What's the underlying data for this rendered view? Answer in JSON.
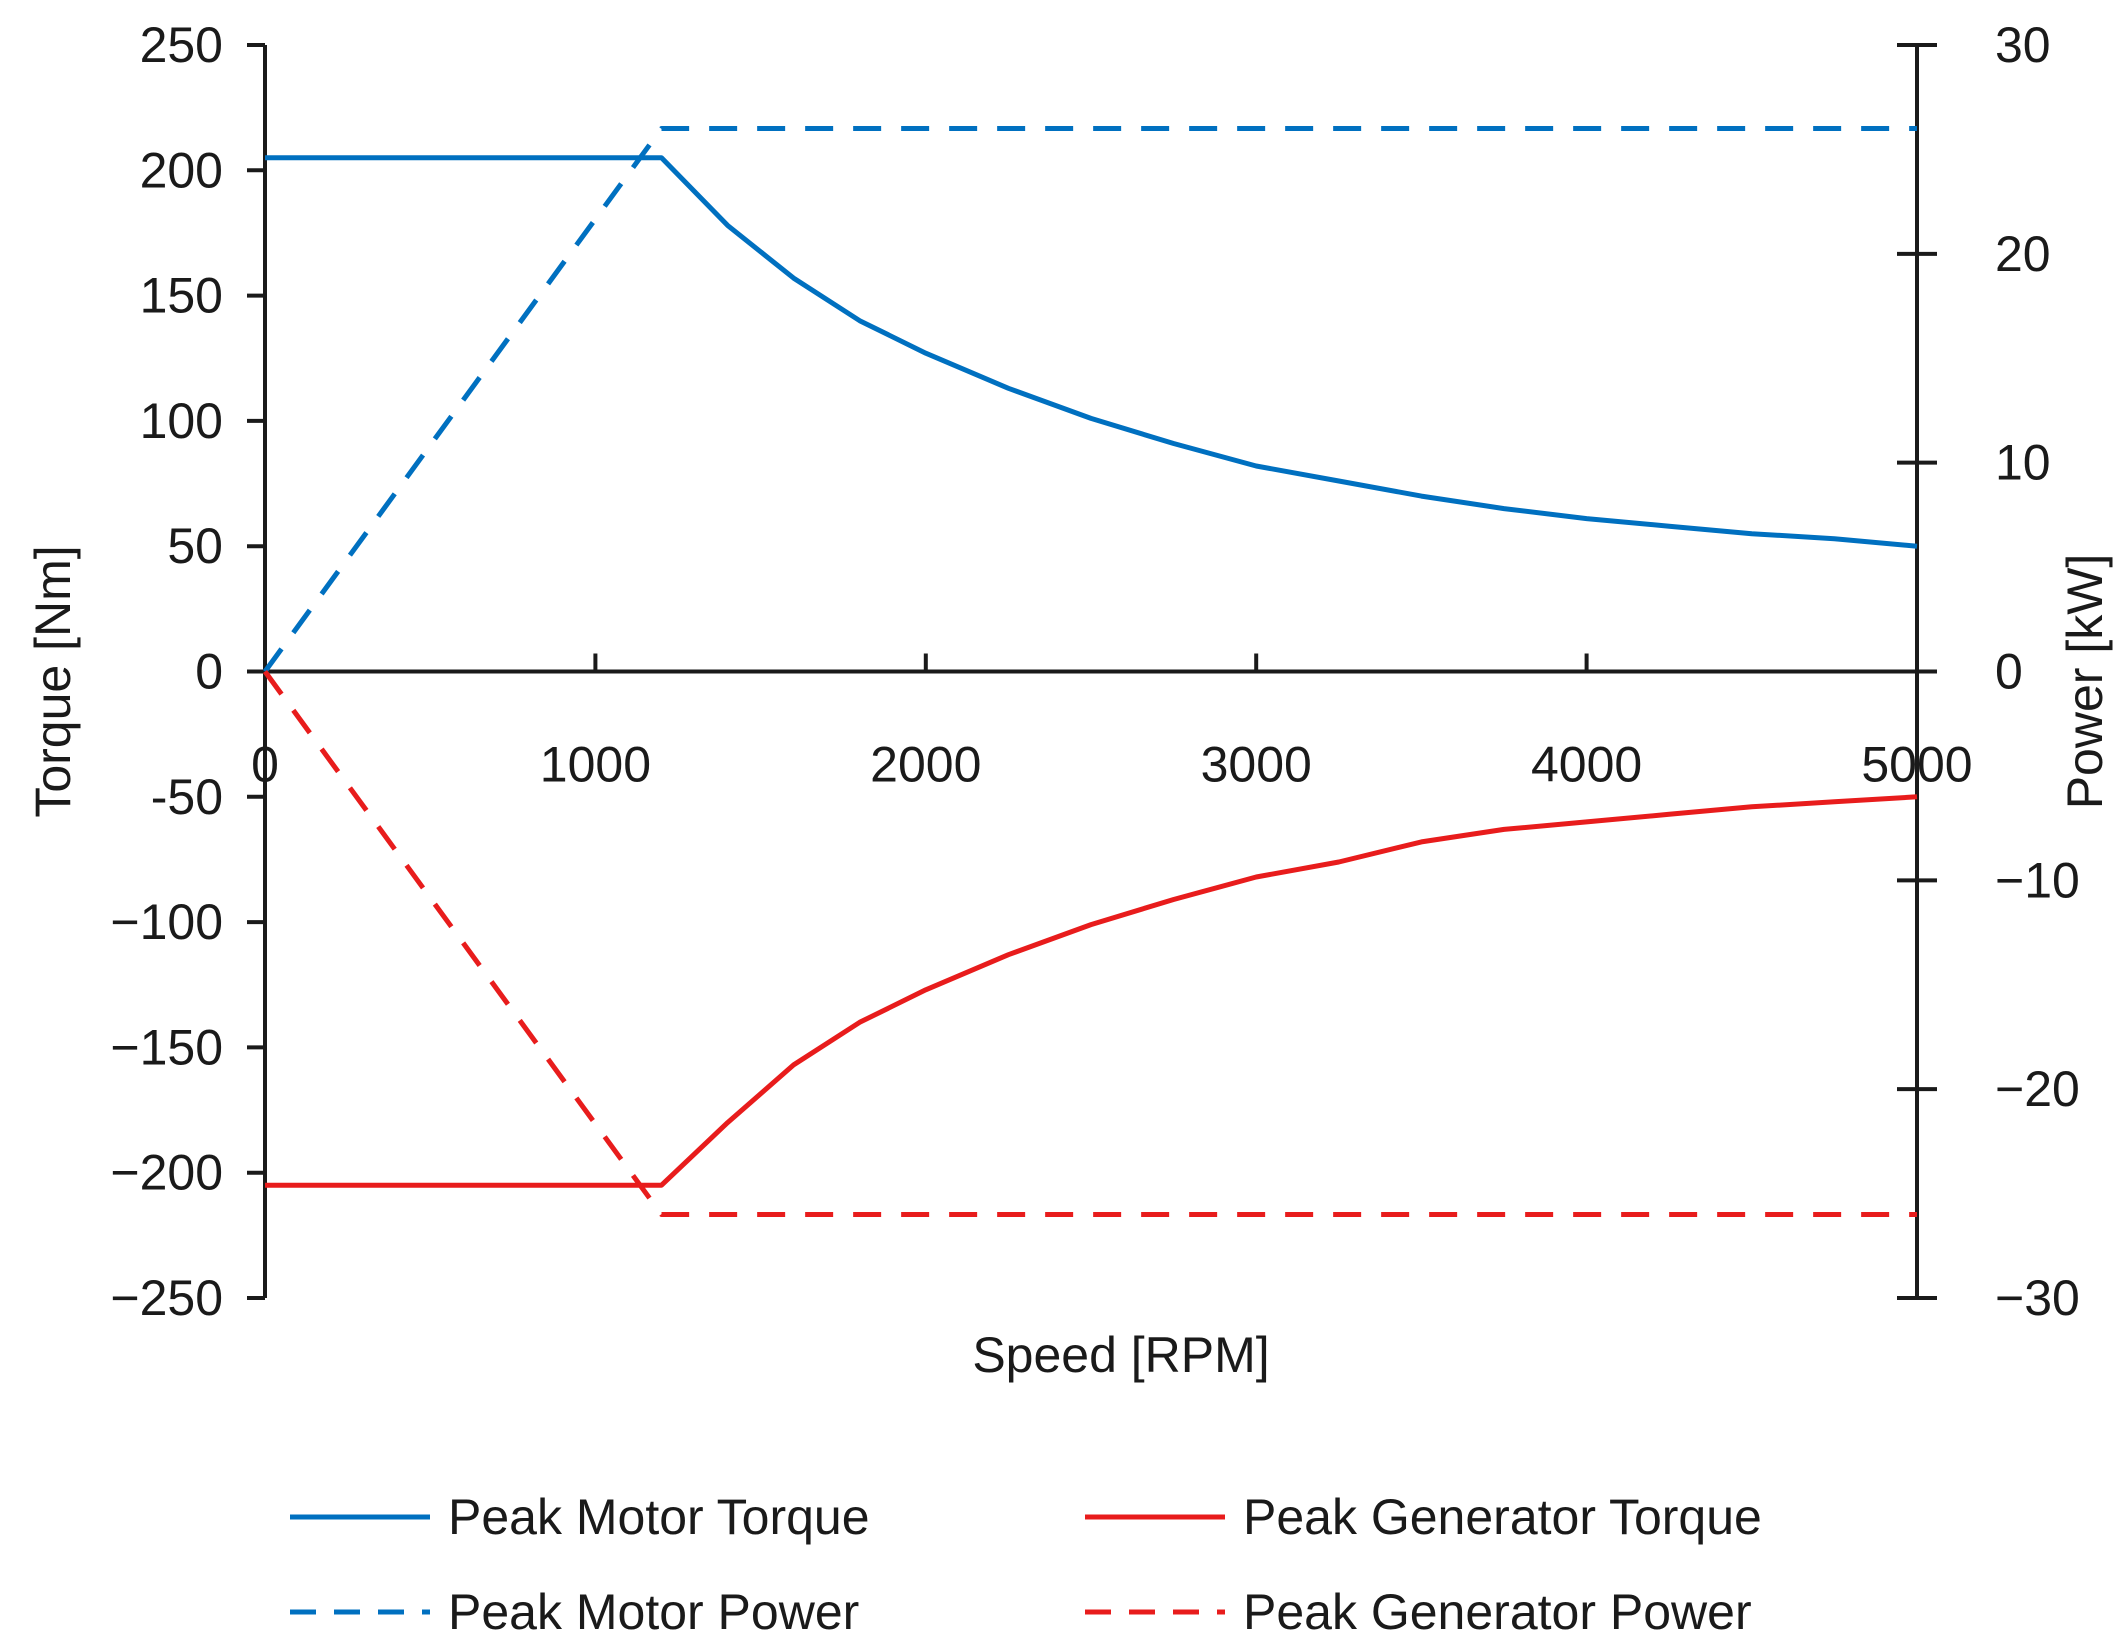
{
  "chart_data": {
    "type": "line",
    "title": "",
    "xlabel": "Speed [RPM]",
    "ylabel": "Torque [Nm]",
    "y2label": "Power [kW]",
    "xlim": [
      0,
      5000
    ],
    "ylim": [
      -250,
      250
    ],
    "y2lim": [
      -30,
      30
    ],
    "xticks": [
      0,
      1000,
      2000,
      3000,
      4000,
      5000
    ],
    "xtick_labels": [
      "0",
      "1000",
      "2000",
      "3000",
      "4000",
      "5000"
    ],
    "yticks": [
      250,
      200,
      150,
      100,
      50,
      0,
      -50,
      -100,
      -150,
      -200,
      -250
    ],
    "ytick_labels": [
      "250",
      "200",
      "150",
      "100",
      "50",
      "0",
      "-50",
      "−100",
      "−150",
      "−200",
      "−250"
    ],
    "y2ticks": [
      30,
      20,
      10,
      0,
      -10,
      -20,
      -30
    ],
    "y2tick_labels": [
      "30",
      "20",
      "10",
      "0",
      "−10",
      "−20",
      "−30"
    ],
    "grid": false,
    "legend_position": "bottom",
    "series": [
      {
        "name": "Peak Motor Torque",
        "axis": "left",
        "color": "#0070C0",
        "dash": "solid",
        "x": [
          0,
          1200,
          1400,
          1600,
          1800,
          2000,
          2250,
          2500,
          2750,
          3000,
          3250,
          3500,
          3750,
          4000,
          4250,
          4500,
          4750,
          5000
        ],
        "y": [
          205,
          205,
          178,
          157,
          140,
          127,
          113,
          101,
          91,
          82,
          76,
          70,
          65,
          61,
          58,
          55,
          53,
          50
        ]
      },
      {
        "name": "Peak Generator Torque",
        "axis": "left",
        "color": "#E81C1C",
        "dash": "solid",
        "x": [
          0,
          1200,
          1400,
          1600,
          1800,
          2000,
          2250,
          2500,
          2750,
          3000,
          3250,
          3500,
          3750,
          4000,
          4250,
          4500,
          4750,
          5000
        ],
        "y": [
          -205,
          -205,
          -180,
          -157,
          -140,
          -127,
          -113,
          -101,
          -91,
          -82,
          -76,
          -68,
          -63,
          -60,
          -57,
          -54,
          -52,
          -50
        ]
      },
      {
        "name": "Peak Motor Power",
        "axis": "right",
        "color": "#0070C0",
        "dash": "dashed",
        "x": [
          0,
          1200,
          5000
        ],
        "y": [
          0,
          26,
          26
        ]
      },
      {
        "name": "Peak Generator Power",
        "axis": "right",
        "color": "#E81C1C",
        "dash": "dashed",
        "x": [
          0,
          1200,
          5000
        ],
        "y": [
          0,
          -26,
          -26
        ]
      }
    ],
    "legend": {
      "items": [
        "Peak Motor Torque",
        "Peak Generator Torque",
        "Peak Motor Power",
        "Peak Generator Power"
      ]
    }
  }
}
